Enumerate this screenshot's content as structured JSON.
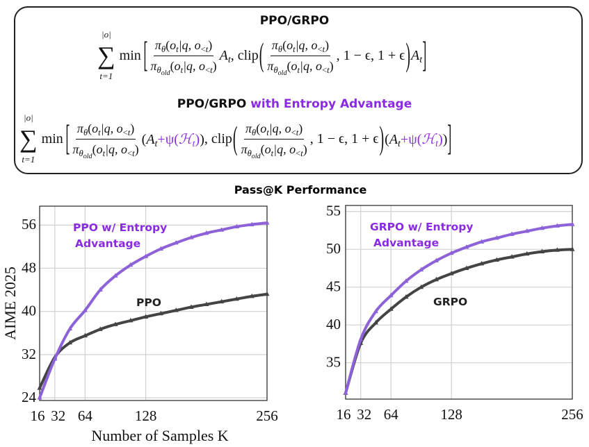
{
  "formula_box": {
    "title1": "PPO/GRPO",
    "title2_prefix": "PPO/GRPO ",
    "title2_highlight": "with Entropy Advantage",
    "highlight_color": "#8a2be2"
  },
  "math": {
    "sum": "∑",
    "upper": "|o|",
    "lower": "t=1",
    "min": "min",
    "clip": ", clip",
    "lbr": "[",
    "rbr": "]",
    "lp": "(",
    "rp": ")",
    "pi": "π",
    "theta": "θ",
    "old": "old",
    "o": "o",
    "t": "t",
    "q": "|q, ",
    "lt": "<",
    "A": "A",
    "eps": ", 1 − ϵ, 1 + ϵ",
    "plus_psi": "+ψ(",
    "H": "ℋ",
    "comma": ","
  },
  "figure_title": "Pass@K Performance",
  "chart_data": [
    {
      "type": "line",
      "xlabel": "Number of Samples K",
      "ylabel": "AIME 2025",
      "xlim": [
        16,
        256
      ],
      "ylim": [
        23.5,
        59.5
      ],
      "xticks": [
        16,
        32,
        64,
        128,
        256
      ],
      "yticks": [
        24,
        32,
        40,
        48,
        56
      ],
      "grid": true,
      "x": [
        16,
        32,
        48,
        64,
        80,
        96,
        112,
        128,
        144,
        160,
        176,
        192,
        208,
        224,
        240,
        256
      ],
      "series": [
        {
          "name": "PPO w/ Entropy Advantage",
          "color": "#8d62d9",
          "label_color": "#8a2be2",
          "values": [
            24.0,
            31.2,
            36.8,
            40.2,
            44.0,
            46.6,
            48.6,
            50.2,
            51.6,
            52.7,
            53.7,
            54.5,
            55.1,
            55.7,
            56.1,
            56.4
          ]
        },
        {
          "name": "PPO",
          "color": "#444444",
          "label_color": "#222222",
          "values": [
            25.8,
            31.5,
            34.2,
            35.5,
            36.7,
            37.6,
            38.3,
            39.0,
            39.6,
            40.2,
            40.8,
            41.3,
            41.8,
            42.3,
            42.8,
            43.2
          ]
        }
      ],
      "annotations": [
        "PPO w/ Entropy",
        "Advantage",
        "PPO"
      ]
    },
    {
      "type": "line",
      "xlim": [
        16,
        256
      ],
      "ylim": [
        30.2,
        55.8
      ],
      "xticks": [
        16,
        32,
        64,
        128,
        256
      ],
      "yticks": [
        35,
        40,
        45,
        50,
        55
      ],
      "grid": true,
      "x": [
        16,
        32,
        48,
        64,
        80,
        96,
        112,
        128,
        144,
        160,
        176,
        192,
        208,
        224,
        240,
        256
      ],
      "series": [
        {
          "name": "GRPO w/ Entropy Advantage",
          "color": "#8d62d9",
          "label_color": "#8a2be2",
          "values": [
            31.0,
            38.1,
            41.8,
            43.9,
            45.8,
            47.3,
            48.5,
            49.5,
            50.3,
            51.0,
            51.5,
            52.0,
            52.4,
            52.8,
            53.1,
            53.3
          ]
        },
        {
          "name": "GRPO",
          "color": "#444444",
          "label_color": "#222222",
          "values": [
            31.0,
            37.6,
            40.3,
            42.1,
            43.7,
            45.0,
            46.0,
            46.8,
            47.5,
            48.1,
            48.6,
            49.0,
            49.4,
            49.7,
            49.9,
            50.0
          ]
        }
      ],
      "annotations": [
        "GRPO w/ Entropy",
        "Advantage",
        "GRPO"
      ]
    }
  ]
}
